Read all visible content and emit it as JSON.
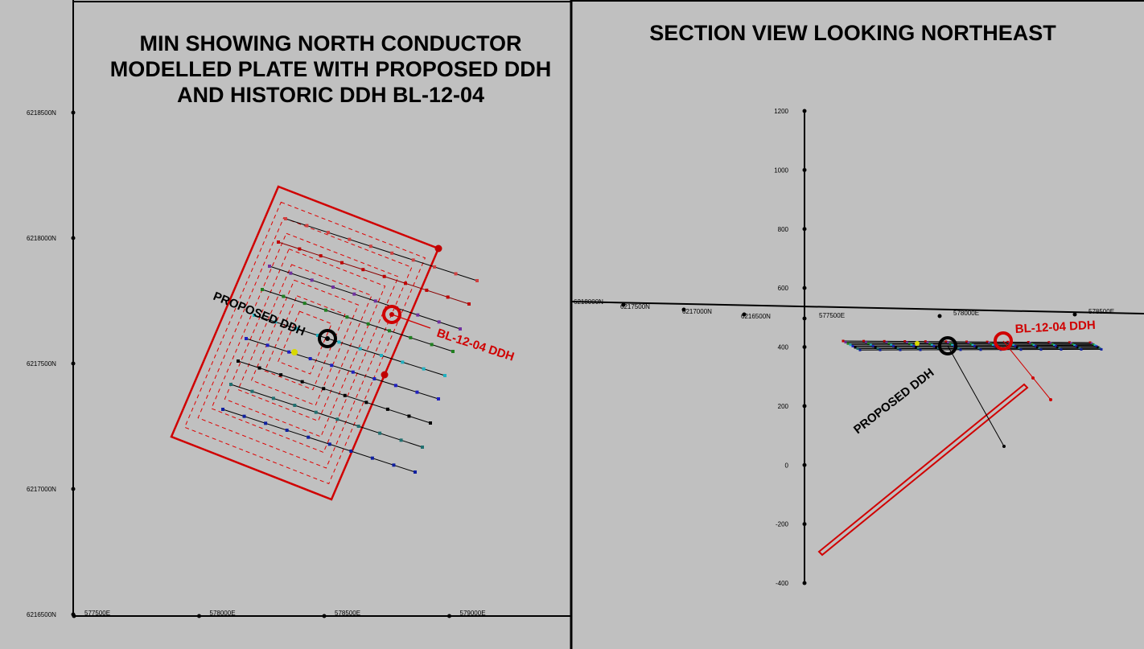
{
  "left_panel": {
    "title_lines": [
      "MIN SHOWING NORTH CONDUCTOR",
      "MODELLED PLATE WITH PROPOSED DDH",
      "AND HISTORIC DDH BL-12-04"
    ],
    "northing_labels": [
      "6218500N",
      "6218000N",
      "6217500N",
      "6217000N",
      "6216500N"
    ],
    "easting_labels": [
      "577500E",
      "578000E",
      "578500E",
      "579000E"
    ],
    "proposed_label": "PROPOSED DDH",
    "historic_label": "BL-12-04 DDH"
  },
  "right_panel": {
    "title": "SECTION VIEW LOOKING NORTHEAST",
    "elevation_ticks": [
      1200,
      1000,
      800,
      600,
      400,
      200,
      0,
      -200,
      -400
    ],
    "section_labels": [
      "6218000N",
      "6217500N",
      "6217000N",
      "6216500N",
      "577500E",
      "578000E",
      "578500E"
    ],
    "proposed_label": "PROPOSED DDH",
    "historic_label": "BL-12-04 DDH"
  }
}
